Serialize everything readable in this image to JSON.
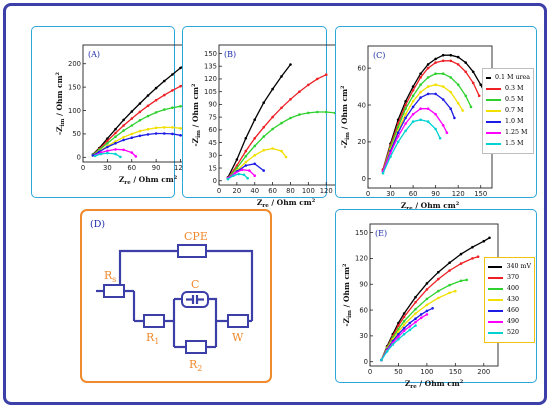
{
  "colors": {
    "frame": "#3c3fa7",
    "panel_border": "#2ea7d8",
    "circuit_border": "#f08a2e",
    "circuit_text": "#f08a2e",
    "circuit_wire": "#3c3fa7",
    "legend_e_border": "#f1c40f"
  },
  "chart_data": [
    {
      "panel_label": "(A)",
      "type": "line",
      "xlabel_main": "Z",
      "xlabel_sub": "re",
      "xlabel_unit": " / Ohm cm",
      "ylabel_main": "-Z",
      "ylabel_sub": "im",
      "ylabel_unit": " / Ohm cm",
      "xlim": [
        0,
        160
      ],
      "ylim": [
        -10,
        240
      ],
      "xticks": [
        0,
        30,
        60,
        90,
        120,
        150
      ],
      "yticks": [
        0,
        50,
        100,
        150,
        200
      ],
      "series": [
        {
          "color": "#000000",
          "x": [
            12,
            20,
            30,
            40,
            50,
            60,
            70,
            80,
            90,
            100,
            110,
            120,
            130,
            140,
            150
          ],
          "y": [
            6,
            20,
            40,
            60,
            80,
            98,
            115,
            132,
            148,
            163,
            177,
            191,
            203,
            214,
            224
          ]
        },
        {
          "color": "#ee1f25",
          "x": [
            12,
            20,
            30,
            40,
            50,
            60,
            70,
            80,
            90,
            100,
            110,
            120,
            130,
            140,
            150
          ],
          "y": [
            5,
            18,
            35,
            52,
            68,
            83,
            97,
            110,
            122,
            133,
            143,
            152,
            160,
            166,
            171
          ]
        },
        {
          "color": "#2fd12f",
          "x": [
            12,
            20,
            30,
            40,
            50,
            60,
            70,
            80,
            90,
            100,
            110,
            120,
            130,
            140,
            150
          ],
          "y": [
            5,
            16,
            30,
            44,
            57,
            68,
            79,
            88,
            96,
            102,
            106,
            109,
            110,
            110,
            107
          ]
        },
        {
          "color": "#f1e000",
          "x": [
            12,
            20,
            30,
            40,
            50,
            60,
            70,
            80,
            90,
            100,
            110,
            120,
            130,
            140,
            150
          ],
          "y": [
            4,
            13,
            24,
            34,
            43,
            50,
            56,
            60,
            63,
            64,
            64,
            62,
            59,
            54,
            47
          ]
        },
        {
          "color": "#1c1ce6",
          "x": [
            12,
            20,
            30,
            40,
            50,
            60,
            70,
            80,
            90,
            100,
            110,
            120,
            130,
            140,
            150
          ],
          "y": [
            4,
            12,
            22,
            30,
            37,
            42,
            46,
            49,
            51,
            51,
            50,
            47,
            43,
            36,
            27
          ]
        },
        {
          "color": "#ff00ff",
          "x": [
            15,
            22,
            30,
            40,
            50,
            60,
            65
          ],
          "y": [
            4,
            10,
            14,
            17,
            16,
            10,
            2
          ]
        },
        {
          "color": "#00d2d2",
          "x": [
            15,
            22,
            30,
            40,
            46
          ],
          "y": [
            3,
            7,
            9,
            7,
            1
          ]
        }
      ]
    },
    {
      "panel_label": "(B)",
      "type": "line",
      "xlabel_main": "Z",
      "xlabel_sub": "re",
      "xlabel_unit": " / Ohm cm",
      "ylabel_main": "-Z",
      "ylabel_sub": "im",
      "ylabel_unit": " / Ohm cm",
      "xlim": [
        0,
        150
      ],
      "ylim": [
        -5,
        160
      ],
      "xticks": [
        0,
        20,
        40,
        60,
        80,
        100,
        120,
        140
      ],
      "yticks": [
        0,
        15,
        30,
        45,
        60,
        75,
        90,
        105,
        120,
        135,
        150
      ],
      "series": [
        {
          "color": "#000000",
          "x": [
            10,
            20,
            30,
            40,
            50,
            60,
            70,
            80
          ],
          "y": [
            4,
            25,
            50,
            72,
            92,
            108,
            123,
            137
          ]
        },
        {
          "color": "#ee1f25",
          "x": [
            10,
            20,
            30,
            40,
            50,
            60,
            70,
            80,
            90,
            100,
            110,
            120
          ],
          "y": [
            3,
            18,
            35,
            50,
            63,
            75,
            86,
            96,
            105,
            113,
            120,
            125
          ]
        },
        {
          "color": "#2fd12f",
          "x": [
            10,
            20,
            30,
            40,
            50,
            60,
            70,
            80,
            90,
            100,
            110,
            120,
            130
          ],
          "y": [
            3,
            15,
            29,
            41,
            52,
            61,
            68,
            74,
            78,
            80,
            81,
            81,
            80
          ]
        },
        {
          "color": "#f1e000",
          "x": [
            10,
            20,
            30,
            40,
            50,
            60,
            70,
            75
          ],
          "y": [
            3,
            12,
            22,
            30,
            36,
            38,
            35,
            28
          ]
        },
        {
          "color": "#1c1ce6",
          "x": [
            10,
            20,
            30,
            40,
            50
          ],
          "y": [
            3,
            11,
            18,
            20,
            12
          ]
        },
        {
          "color": "#ff00ff",
          "x": [
            10,
            18,
            26,
            34,
            40
          ],
          "y": [
            3,
            9,
            13,
            12,
            6
          ]
        },
        {
          "color": "#00d2d2",
          "x": [
            10,
            16,
            22,
            28,
            32
          ],
          "y": [
            2,
            6,
            8,
            7,
            3
          ]
        }
      ]
    },
    {
      "panel_label": "(C)",
      "type": "line",
      "xlabel_main": "Z",
      "xlabel_sub": "re",
      "xlabel_unit": " / Ohm cm",
      "ylabel_main": "-Z",
      "ylabel_sub": "im",
      "ylabel_unit": " / Ohm cm",
      "xlim": [
        0,
        165
      ],
      "ylim": [
        -5,
        72
      ],
      "xticks": [
        0,
        30,
        60,
        90,
        120,
        150
      ],
      "yticks": [
        0,
        20,
        40,
        60
      ],
      "series": [
        {
          "color": "#000000",
          "x": [
            20,
            30,
            40,
            50,
            60,
            70,
            80,
            90,
            100,
            110,
            120,
            130,
            140,
            150,
            155
          ],
          "y": [
            5,
            19,
            32,
            42,
            50,
            57,
            62,
            65,
            67,
            67,
            66,
            63,
            58,
            51,
            47
          ]
        },
        {
          "color": "#ee1f25",
          "x": [
            20,
            30,
            40,
            50,
            60,
            70,
            80,
            90,
            100,
            110,
            120,
            130,
            140,
            148
          ],
          "y": [
            5,
            18,
            30,
            40,
            48,
            55,
            60,
            63,
            64,
            64,
            62,
            58,
            52,
            45
          ]
        },
        {
          "color": "#2fd12f",
          "x": [
            20,
            30,
            40,
            50,
            60,
            70,
            80,
            90,
            100,
            110,
            120,
            130,
            137
          ],
          "y": [
            4,
            17,
            28,
            38,
            45,
            51,
            55,
            57,
            57,
            55,
            51,
            45,
            39
          ]
        },
        {
          "color": "#f1e000",
          "x": [
            20,
            30,
            40,
            50,
            60,
            70,
            80,
            90,
            100,
            110,
            120,
            126
          ],
          "y": [
            4,
            16,
            26,
            35,
            42,
            47,
            50,
            51,
            50,
            47,
            41,
            37
          ]
        },
        {
          "color": "#1c1ce6",
          "x": [
            20,
            30,
            40,
            50,
            60,
            70,
            80,
            90,
            100,
            110,
            115
          ],
          "y": [
            4,
            15,
            25,
            33,
            39,
            44,
            46,
            46,
            43,
            38,
            33
          ]
        },
        {
          "color": "#ff00ff",
          "x": [
            20,
            30,
            40,
            50,
            60,
            70,
            80,
            90,
            100,
            105
          ],
          "y": [
            4,
            14,
            23,
            30,
            35,
            38,
            38,
            35,
            29,
            25
          ]
        },
        {
          "color": "#00d2d2",
          "x": [
            20,
            30,
            40,
            50,
            60,
            70,
            80,
            90,
            96
          ],
          "y": [
            3,
            12,
            20,
            26,
            31,
            32,
            31,
            27,
            22
          ]
        }
      ],
      "legend": [
        "0.1 M urea",
        "0.3 M",
        "0.5 M",
        "0.7 M",
        "1.0 M",
        "1.25 M",
        "1.5 M"
      ]
    },
    {
      "panel_label": "(E)",
      "type": "line",
      "xlabel_main": "Z",
      "xlabel_sub": "re",
      "xlabel_unit": " / Ohm cm",
      "ylabel_main": "-Z",
      "ylabel_sub": "im",
      "ylabel_unit": " / Ohm cm",
      "xlim": [
        0,
        225
      ],
      "ylim": [
        -5,
        160
      ],
      "xticks": [
        0,
        50,
        100,
        150,
        200
      ],
      "yticks": [
        0,
        30,
        60,
        90,
        120,
        150
      ],
      "series": [
        {
          "color": "#000000",
          "x": [
            20,
            30,
            40,
            50,
            60,
            80,
            100,
            120,
            140,
            160,
            180,
            200,
            210
          ],
          "y": [
            2,
            18,
            32,
            45,
            56,
            75,
            91,
            104,
            115,
            125,
            133,
            140,
            144
          ]
        },
        {
          "color": "#ee1f25",
          "x": [
            20,
            30,
            40,
            50,
            60,
            80,
            100,
            120,
            140,
            160,
            180,
            190
          ],
          "y": [
            2,
            17,
            30,
            42,
            52,
            69,
            84,
            96,
            106,
            114,
            120,
            122
          ]
        },
        {
          "color": "#2fd12f",
          "x": [
            20,
            30,
            40,
            50,
            60,
            80,
            100,
            120,
            140,
            160,
            170
          ],
          "y": [
            2,
            16,
            28,
            38,
            47,
            61,
            73,
            82,
            89,
            94,
            95
          ]
        },
        {
          "color": "#f1e000",
          "x": [
            20,
            30,
            40,
            50,
            60,
            80,
            100,
            120,
            140,
            150
          ],
          "y": [
            2,
            15,
            26,
            35,
            43,
            56,
            66,
            74,
            80,
            82
          ]
        },
        {
          "color": "#1c1ce6",
          "x": [
            20,
            30,
            40,
            50,
            60,
            70,
            80,
            90,
            100,
            110
          ],
          "y": [
            2,
            14,
            24,
            32,
            39,
            45,
            50,
            55,
            59,
            62
          ]
        },
        {
          "color": "#ff00ff",
          "x": [
            20,
            30,
            40,
            50,
            60,
            70,
            80,
            90,
            100
          ],
          "y": [
            2,
            13,
            22,
            29,
            36,
            41,
            46,
            51,
            55
          ]
        },
        {
          "color": "#00d2d2",
          "x": [
            20,
            30,
            40,
            50,
            60,
            70,
            80
          ],
          "y": [
            2,
            12,
            20,
            26,
            32,
            37,
            42
          ]
        }
      ],
      "legend": [
        "340 mV",
        "370",
        "400",
        "430",
        "460",
        "490",
        "520"
      ]
    }
  ],
  "circuit": {
    "panel_label": "(D)",
    "cpe_label": "CPE",
    "rs_label": "R",
    "rs_sub": "s",
    "c_label": "C",
    "r1_label": "R",
    "r1_sub": "1",
    "r2_label": "R",
    "r2_sub": "2",
    "w_label": "W"
  }
}
